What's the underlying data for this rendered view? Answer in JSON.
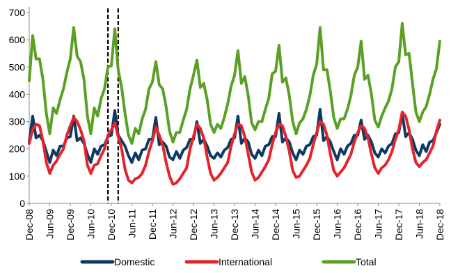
{
  "chart_data": {
    "type": "line",
    "title": "",
    "xlabel": "",
    "ylabel": "",
    "ylim": [
      0,
      700
    ],
    "yticks": [
      0,
      100,
      200,
      300,
      400,
      500,
      600,
      700
    ],
    "x_tick_labels": [
      "Dec-08",
      "Jun-09",
      "Dec-09",
      "Jun-10",
      "Dec-10",
      "Jun-11",
      "Dec-11",
      "Jun-12",
      "Dec-12",
      "Jun-13",
      "Dec-13",
      "Jun-14",
      "Dec-14",
      "Jun-15",
      "Dec-15",
      "Jun-16",
      "Dec-16",
      "Jun-17",
      "Dec-17",
      "Jun-18",
      "Dec-18"
    ],
    "grid": false,
    "legend": "bottom",
    "markers": [
      {
        "x": "Nov-10",
        "style": "dashed",
        "color": "#000000"
      },
      {
        "x": "Jan-11",
        "style": "dashed",
        "color": "#000000"
      }
    ],
    "series": [
      {
        "name": "Domestic",
        "color": "#0d3a63",
        "values": [
          225,
          320,
          240,
          250,
          230,
          190,
          150,
          195,
          175,
          210,
          210,
          240,
          245,
          320,
          230,
          240,
          220,
          180,
          150,
          200,
          180,
          210,
          215,
          245,
          250,
          340,
          250,
          230,
          210,
          175,
          150,
          185,
          160,
          195,
          200,
          235,
          235,
          315,
          215,
          225,
          210,
          170,
          160,
          190,
          165,
          195,
          205,
          235,
          235,
          300,
          220,
          235,
          210,
          175,
          165,
          185,
          170,
          195,
          205,
          235,
          240,
          320,
          220,
          240,
          225,
          180,
          165,
          195,
          175,
          210,
          215,
          245,
          245,
          330,
          225,
          240,
          225,
          185,
          160,
          195,
          180,
          210,
          215,
          245,
          250,
          345,
          230,
          245,
          225,
          190,
          160,
          200,
          180,
          210,
          220,
          250,
          250,
          305,
          235,
          250,
          225,
          185,
          170,
          200,
          185,
          210,
          220,
          255,
          260,
          330,
          245,
          260,
          235,
          195,
          175,
          215,
          190,
          225,
          230,
          260,
          290
        ]
      },
      {
        "name": "International",
        "color": "#e5232b",
        "values": [
          220,
          270,
          290,
          285,
          230,
          150,
          110,
          140,
          155,
          180,
          200,
          250,
          285,
          315,
          300,
          270,
          230,
          140,
          110,
          140,
          145,
          175,
          200,
          250,
          270,
          295,
          245,
          200,
          125,
          85,
          75,
          90,
          95,
          110,
          140,
          190,
          230,
          280,
          250,
          215,
          150,
          100,
          70,
          75,
          90,
          110,
          130,
          200,
          245,
          290,
          275,
          240,
          170,
          110,
          85,
          95,
          110,
          130,
          150,
          210,
          255,
          290,
          285,
          245,
          180,
          115,
          85,
          95,
          115,
          135,
          160,
          215,
          260,
          290,
          285,
          245,
          190,
          120,
          95,
          100,
          120,
          140,
          165,
          215,
          260,
          300,
          290,
          250,
          180,
          120,
          100,
          115,
          130,
          155,
          180,
          225,
          260,
          285,
          275,
          240,
          180,
          130,
          110,
          130,
          140,
          160,
          190,
          235,
          270,
          335,
          320,
          270,
          200,
          150,
          135,
          150,
          160,
          185,
          210,
          265,
          305
        ]
      },
      {
        "name": "Total",
        "color": "#5aa024",
        "values": [
          450,
          615,
          530,
          530,
          455,
          330,
          255,
          350,
          330,
          380,
          420,
          480,
          530,
          645,
          540,
          520,
          455,
          320,
          255,
          350,
          320,
          385,
          420,
          500,
          505,
          640,
          490,
          425,
          330,
          250,
          220,
          275,
          255,
          310,
          345,
          420,
          445,
          520,
          435,
          420,
          355,
          265,
          225,
          260,
          260,
          305,
          345,
          420,
          470,
          525,
          425,
          440,
          380,
          290,
          260,
          290,
          275,
          315,
          365,
          430,
          470,
          560,
          440,
          465,
          395,
          295,
          270,
          300,
          300,
          345,
          385,
          475,
          485,
          580,
          445,
          460,
          395,
          300,
          255,
          295,
          310,
          345,
          395,
          470,
          510,
          645,
          490,
          490,
          410,
          315,
          275,
          310,
          310,
          345,
          395,
          470,
          500,
          595,
          455,
          470,
          400,
          305,
          280,
          320,
          350,
          375,
          420,
          500,
          520,
          660,
          545,
          550,
          440,
          335,
          300,
          335,
          355,
          400,
          455,
          495,
          595
        ]
      }
    ]
  }
}
